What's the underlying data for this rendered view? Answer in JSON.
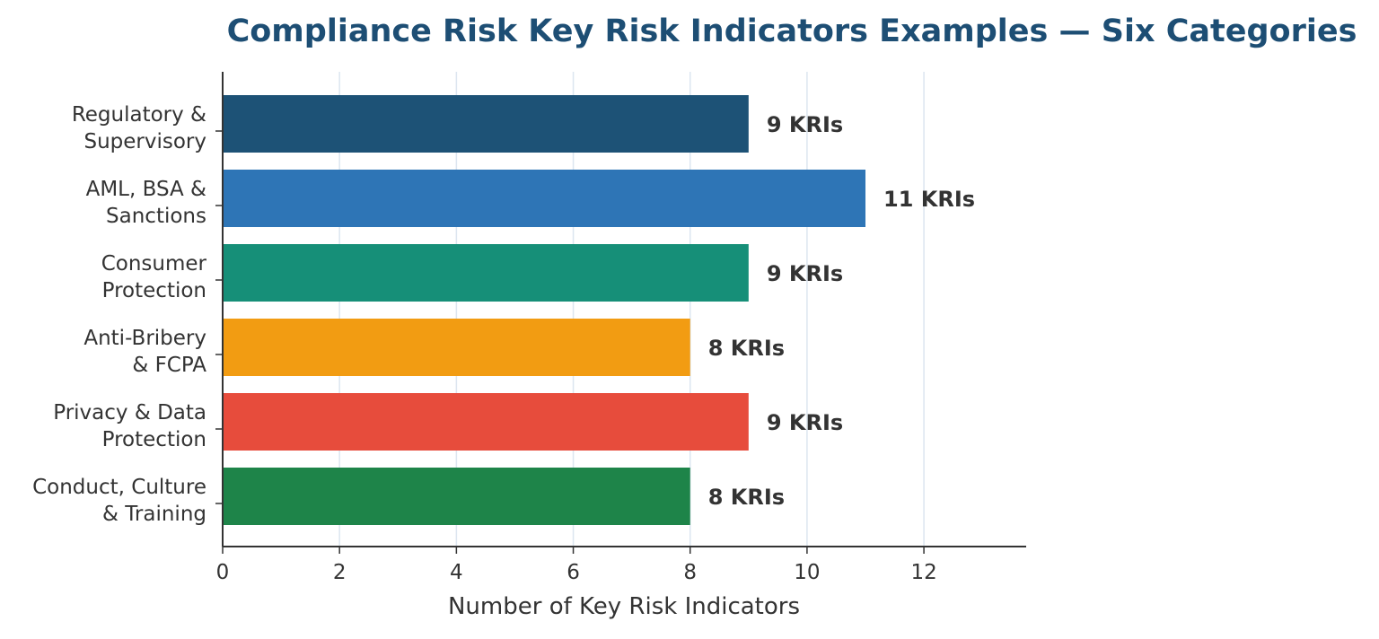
{
  "chart_data": {
    "type": "bar",
    "orientation": "horizontal",
    "title": "Compliance Risk Key Risk Indicators Examples — Six Categories",
    "xlabel": "Number of Key Risk Indicators",
    "ylabel": "",
    "xlim": [
      0,
      13.75
    ],
    "xticks": [
      0,
      2,
      4,
      6,
      8,
      10,
      12
    ],
    "grid": "vertical",
    "categories": [
      [
        "Regulatory &",
        "Supervisory"
      ],
      [
        "AML, BSA &",
        "Sanctions"
      ],
      [
        "Consumer",
        "Protection"
      ],
      [
        "Anti-Bribery",
        "& FCPA"
      ],
      [
        "Privacy & Data",
        "Protection"
      ],
      [
        "Conduct, Culture",
        "& Training"
      ]
    ],
    "values": [
      9,
      11,
      9,
      8,
      9,
      8
    ],
    "data_labels": [
      "9 KRIs",
      "11 KRIs",
      "9 KRIs",
      "8 KRIs",
      "9 KRIs",
      "8 KRIs"
    ],
    "colors": [
      "#1d5276",
      "#2e75b6",
      "#168f78",
      "#f29c12",
      "#e74c3c",
      "#1e8449"
    ],
    "title_color": "#1d4e74",
    "text_color": "#333333",
    "grid_color": "#dce6f0"
  }
}
